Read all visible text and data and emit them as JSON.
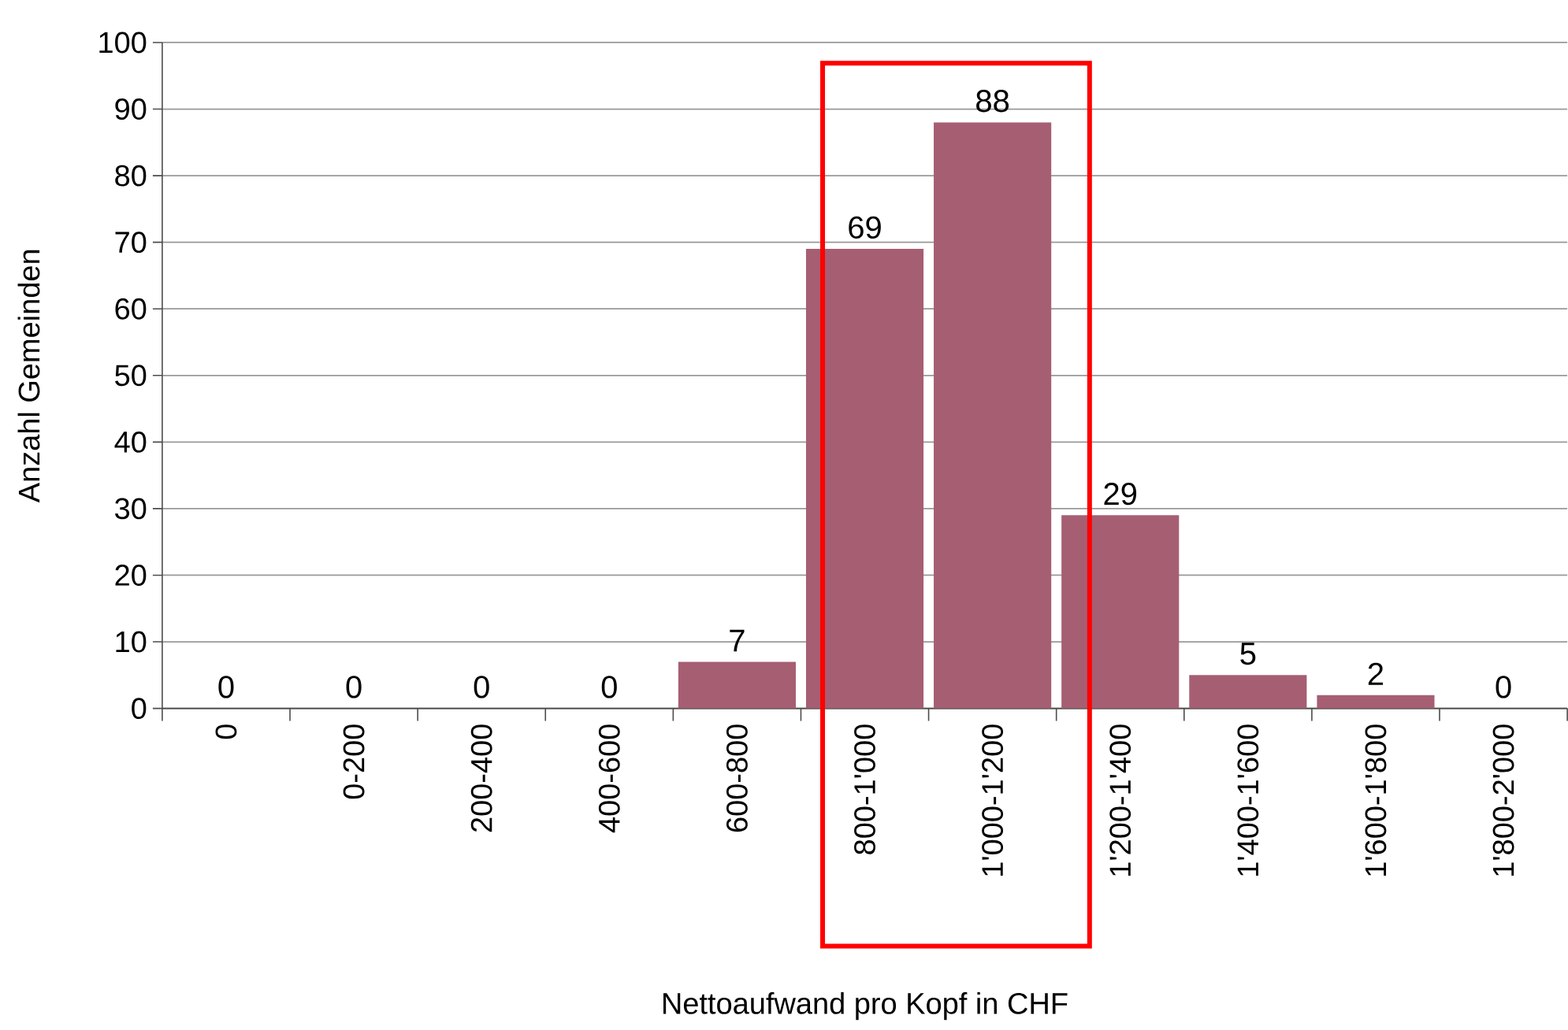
{
  "chart_data": {
    "type": "bar",
    "xlabel": "Nettoaufwand pro Kopf in CHF",
    "ylabel": "Anzahl Gemeinden",
    "categories": [
      "0",
      "0-200",
      "200-400",
      "400-600",
      "600-800",
      "800-1'000",
      "1'000-1'200",
      "1'200-1'400",
      "1'400-1'600",
      "1'600-1'800",
      "1'800-2'000"
    ],
    "values": [
      0,
      0,
      0,
      0,
      7,
      69,
      88,
      29,
      5,
      2,
      0
    ],
    "color": "#a65e73",
    "ylim": [
      0,
      100
    ],
    "yticks": [
      0,
      10,
      20,
      30,
      40,
      50,
      60,
      70,
      80,
      90,
      100
    ],
    "grid": "y",
    "data_labels": true
  }
}
